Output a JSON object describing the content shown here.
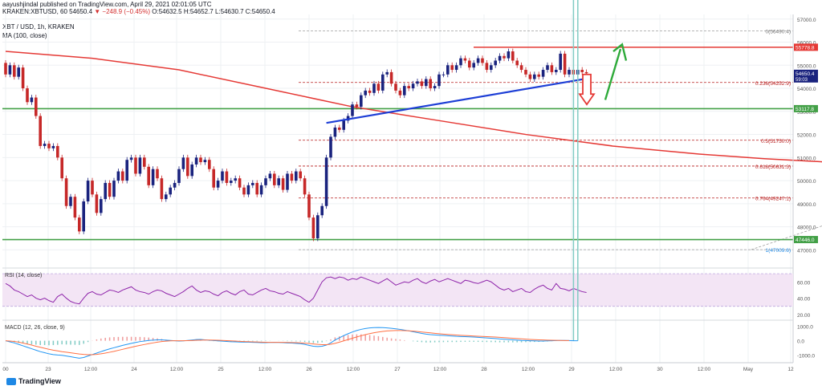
{
  "header": {
    "author_line": "aayushjindal published on TradingView.com, April 29, 2021 02:01:05 UTC",
    "ticker_line_prefix": "KRAKEN:XBTUSD, 60  54650.4 ",
    "ticker_change": "▼ −248.9 (−0.45%)",
    "ticker_ohlc": " O:54632.5 H:54652.7 L:54630.7 C:54650.4",
    "symbol_title": "XBT / USD, 1h, KRAKEN",
    "ma_label": "MA (100, close)"
  },
  "colors": {
    "up": "#1a237e",
    "down": "#c62828",
    "ma": "#e53935",
    "trendline": "#1e3fd6",
    "support": "#43a047",
    "resistance": "#e53935",
    "fib": "#b71c1c",
    "rsi": "#8e24aa",
    "rsi_band": "#f3e5f5",
    "macd": "#2196f3",
    "signal": "#ff7043",
    "arrow_up": "#2eaa3a",
    "arrow_down": "#e53935"
  },
  "chart_data": {
    "type": "candlestick",
    "title": "XBT / USD, 1h, KRAKEN",
    "ylim": [
      46700,
      57200
    ],
    "y_ticks": [
      47000,
      48000,
      49000,
      50000,
      51000,
      52000,
      53000,
      54000,
      55000,
      56000,
      57000
    ],
    "y_tick_labels": [
      "47000.0",
      "48000.0",
      "49000.0",
      "50000.0",
      "51000.0",
      "52000.0",
      "53000.0",
      "54000.0",
      "55000.0",
      "56000.0",
      "57000.0"
    ],
    "x_ticks": [
      "00",
      "23",
      "12:00",
      "24",
      "12:00",
      "25",
      "12:00",
      "26",
      "12:00",
      "27",
      "12:00",
      "28",
      "12:00",
      "29",
      "12:00",
      "30",
      "12:00",
      "May",
      "12"
    ],
    "price_badges": [
      {
        "label": "55778.8",
        "value": 55778.8,
        "color": "#e53935"
      },
      {
        "label": "54650.4",
        "value": 54650.4,
        "color": "#1a237e",
        "sub": "59:03"
      },
      {
        "label": "53117.8",
        "value": 53117.8,
        "color": "#43a047"
      },
      {
        "label": "47446.0",
        "value": 47446.0,
        "color": "#43a047"
      }
    ],
    "horizontal_levels": [
      {
        "name": "resistance",
        "value": 55778.8
      },
      {
        "name": "support-upper",
        "value": 53117.8
      },
      {
        "name": "support-lower",
        "value": 47446.0
      }
    ],
    "fibonacci": [
      {
        "ratio": "0",
        "value": 56490.4,
        "label": "0(56490.4)"
      },
      {
        "ratio": "0.236",
        "value": 54252.9,
        "label": "0.236(54252.9)"
      },
      {
        "ratio": "0.5",
        "value": 51750.0,
        "label": "0.5(51750.0)"
      },
      {
        "ratio": "0.618",
        "value": 50631.3,
        "label": "0.618(50631.3)"
      },
      {
        "ratio": "0.764",
        "value": 49247.1,
        "label": "0.764(49247.1)"
      },
      {
        "ratio": "1",
        "value": 47009.6,
        "label": "1(47009.6)"
      }
    ],
    "candles": [
      [
        55100,
        54600
      ],
      [
        54600,
        55000
      ],
      [
        55000,
        54500
      ],
      [
        54500,
        54900
      ],
      [
        54900,
        54000
      ],
      [
        54000,
        53400
      ],
      [
        53400,
        53600
      ],
      [
        53600,
        52800
      ],
      [
        52800,
        51500
      ],
      [
        51500,
        51600
      ],
      [
        51600,
        51400
      ],
      [
        51400,
        51500
      ],
      [
        51500,
        51000
      ],
      [
        51000,
        50100
      ],
      [
        50100,
        48900
      ],
      [
        48900,
        49300
      ],
      [
        49300,
        48400
      ],
      [
        48400,
        47800
      ],
      [
        47800,
        49100
      ],
      [
        49100,
        50000
      ],
      [
        50000,
        49400
      ],
      [
        49400,
        48600
      ],
      [
        48600,
        49200
      ],
      [
        49200,
        49900
      ],
      [
        49900,
        49300
      ],
      [
        49300,
        50000
      ],
      [
        50000,
        50400
      ],
      [
        50400,
        50000
      ],
      [
        50000,
        50900
      ],
      [
        50900,
        51000
      ],
      [
        51000,
        50300
      ],
      [
        50300,
        51000
      ],
      [
        51000,
        50600
      ],
      [
        50600,
        49800
      ],
      [
        49800,
        50500
      ],
      [
        50500,
        50100
      ],
      [
        50100,
        49200
      ],
      [
        49200,
        49400
      ],
      [
        49400,
        49700
      ],
      [
        49700,
        49900
      ],
      [
        49900,
        50500
      ],
      [
        50500,
        51000
      ],
      [
        51000,
        50200
      ],
      [
        50200,
        50700
      ],
      [
        50700,
        51000
      ],
      [
        51000,
        50800
      ],
      [
        50800,
        50900
      ],
      [
        50900,
        50500
      ],
      [
        50500,
        49700
      ],
      [
        49700,
        50000
      ],
      [
        50000,
        50400
      ],
      [
        50400,
        49900
      ],
      [
        49900,
        50000
      ],
      [
        50000,
        50100
      ],
      [
        50100,
        49700
      ],
      [
        49700,
        49400
      ],
      [
        49400,
        49800
      ],
      [
        49800,
        49900
      ],
      [
        49900,
        49400
      ],
      [
        49400,
        49800
      ],
      [
        49800,
        50100
      ],
      [
        50100,
        50300
      ],
      [
        50300,
        49800
      ],
      [
        49800,
        50100
      ],
      [
        50100,
        49600
      ],
      [
        49600,
        50300
      ],
      [
        50300,
        50000
      ],
      [
        50000,
        50400
      ],
      [
        50400,
        50100
      ],
      [
        50100,
        49400
      ],
      [
        49400,
        48400
      ],
      [
        48400,
        47500
      ],
      [
        47500,
        48500
      ],
      [
        48500,
        48900
      ],
      [
        48900,
        51000
      ],
      [
        51000,
        51900
      ],
      [
        51900,
        52300
      ],
      [
        52300,
        52200
      ],
      [
        52200,
        52600
      ],
      [
        52600,
        52800
      ],
      [
        52800,
        53300
      ],
      [
        53300,
        53200
      ],
      [
        53200,
        53700
      ],
      [
        53700,
        53900
      ],
      [
        53900,
        53800
      ],
      [
        53800,
        54200
      ],
      [
        54200,
        53900
      ],
      [
        53900,
        54600
      ],
      [
        54600,
        54700
      ],
      [
        54700,
        54200
      ],
      [
        54200,
        53900
      ],
      [
        53900,
        53700
      ],
      [
        53700,
        54100
      ],
      [
        54100,
        54000
      ],
      [
        54000,
        54200
      ],
      [
        54200,
        54300
      ],
      [
        54300,
        54100
      ],
      [
        54100,
        54400
      ],
      [
        54400,
        54000
      ],
      [
        54000,
        54100
      ],
      [
        54100,
        54600
      ],
      [
        54600,
        54600
      ],
      [
        54600,
        55000
      ],
      [
        55000,
        54800
      ],
      [
        54800,
        55000
      ],
      [
        55000,
        55300
      ],
      [
        55300,
        55200
      ],
      [
        55200,
        54900
      ],
      [
        54900,
        55100
      ],
      [
        55100,
        55300
      ],
      [
        55300,
        55100
      ],
      [
        55100,
        54800
      ],
      [
        54800,
        55000
      ],
      [
        55000,
        55200
      ],
      [
        55200,
        55400
      ],
      [
        55400,
        55300
      ],
      [
        55300,
        55600
      ],
      [
        55600,
        55200
      ],
      [
        55200,
        55000
      ],
      [
        55000,
        54800
      ],
      [
        54800,
        54600
      ],
      [
        54600,
        54400
      ],
      [
        54400,
        54600
      ],
      [
        54600,
        54500
      ],
      [
        54500,
        54800
      ],
      [
        54800,
        55000
      ],
      [
        55000,
        54700
      ],
      [
        54700,
        54800
      ],
      [
        54800,
        55500
      ],
      [
        55500,
        54600
      ],
      [
        54600,
        54800
      ],
      [
        54800,
        54600
      ],
      [
        54600,
        54800
      ],
      [
        54800,
        54700
      ],
      [
        54700,
        54650
      ]
    ],
    "ma100": [
      [
        0,
        55600
      ],
      [
        20,
        55300
      ],
      [
        40,
        54800
      ],
      [
        60,
        54000
      ],
      [
        80,
        53200
      ],
      [
        100,
        52600
      ],
      [
        120,
        52000
      ],
      [
        140,
        51500
      ],
      [
        160,
        51150
      ],
      [
        175,
        50950
      ],
      [
        190,
        50800
      ],
      [
        210,
        50750
      ],
      [
        230,
        50850
      ],
      [
        250,
        51200
      ],
      [
        270,
        51700
      ],
      [
        290,
        52150
      ],
      [
        305,
        52500
      ],
      [
        320,
        52900
      ],
      [
        323,
        53117
      ]
    ],
    "trendline": [
      [
        180,
        52500
      ],
      [
        335,
        54450
      ]
    ],
    "fib_anchor": [
      [
        172,
        47009.6
      ],
      [
        323,
        56490.4
      ]
    ],
    "rsi": {
      "label": "RSI (14, close)",
      "ticks": [
        "60.00",
        "40.00",
        "20.00"
      ],
      "values": [
        58,
        55,
        50,
        48,
        45,
        42,
        44,
        40,
        38,
        40,
        37,
        35,
        42,
        45,
        40,
        36,
        34,
        33,
        40,
        46,
        48,
        45,
        44,
        47,
        50,
        49,
        47,
        50,
        52,
        54,
        50,
        48,
        47,
        45,
        48,
        50,
        49,
        46,
        44,
        42,
        45,
        48,
        52,
        55,
        50,
        47,
        49,
        48,
        45,
        43,
        47,
        49,
        46,
        44,
        48,
        50,
        45,
        44,
        47,
        50,
        52,
        49,
        48,
        46,
        45,
        48,
        46,
        44,
        42,
        38,
        35,
        40,
        50,
        60,
        65,
        66,
        64,
        66,
        65,
        62,
        64,
        63,
        66,
        64,
        62,
        60,
        58,
        61,
        64,
        60,
        56,
        58,
        60,
        59,
        62,
        64,
        60,
        58,
        61,
        63,
        60,
        62,
        64,
        62,
        60,
        58,
        62,
        61,
        59,
        58,
        60,
        62,
        60,
        56,
        52,
        50,
        52,
        48,
        50,
        52,
        48,
        47,
        51,
        54,
        56,
        52,
        50,
        58,
        52,
        51,
        49,
        52,
        50,
        48,
        47
      ]
    },
    "macd": {
      "label": "MACD (12, 26, close, 9)",
      "ticks": [
        "1000.0",
        "0.0",
        "-1000.0"
      ],
      "macd": [
        0,
        -80,
        -150,
        -250,
        -350,
        -450,
        -550,
        -650,
        -750,
        -820,
        -900,
        -950,
        -980,
        -1000,
        -1050,
        -1100,
        -1150,
        -1200,
        -1150,
        -1050,
        -950,
        -850,
        -750,
        -650,
        -560,
        -480,
        -400,
        -320,
        -250,
        -180,
        -120,
        -60,
        -20,
        20,
        40,
        60,
        60,
        40,
        20,
        0,
        -20,
        -10,
        20,
        50,
        80,
        90,
        60,
        30,
        10,
        -10,
        -30,
        -50,
        -70,
        -80,
        -90,
        -100,
        -100,
        -110,
        -120,
        -130,
        -130,
        -120,
        -110,
        -120,
        -130,
        -150,
        -160,
        -180,
        -200,
        -250,
        -320,
        -380,
        -400,
        -380,
        -300,
        -150,
        50,
        200,
        350,
        480,
        600,
        700,
        780,
        840,
        880,
        900,
        910,
        900,
        880,
        850,
        820,
        780,
        730,
        680,
        620,
        560,
        500,
        450,
        420,
        400,
        380,
        360,
        340,
        320,
        300,
        290,
        280,
        270,
        250,
        230,
        210,
        190,
        170,
        150,
        120,
        100,
        80,
        60,
        40,
        20,
        10,
        0,
        -10,
        -20,
        -20,
        -10,
        0,
        10,
        20,
        20,
        10,
        0,
        0
      ],
      "signal": [
        0,
        -20,
        -50,
        -100,
        -160,
        -230,
        -300,
        -380,
        -450,
        -520,
        -590,
        -650,
        -700,
        -750,
        -790,
        -830,
        -870,
        -910,
        -940,
        -960,
        -960,
        -940,
        -900,
        -850,
        -790,
        -730,
        -660,
        -590,
        -520,
        -450,
        -380,
        -320,
        -260,
        -200,
        -150,
        -100,
        -60,
        -30,
        -10,
        0,
        0,
        0,
        5,
        15,
        30,
        40,
        45,
        45,
        40,
        30,
        20,
        5,
        -10,
        -25,
        -40,
        -55,
        -65,
        -75,
        -85,
        -95,
        -105,
        -110,
        -110,
        -112,
        -115,
        -120,
        -125,
        -135,
        -145,
        -165,
        -190,
        -220,
        -250,
        -270,
        -270,
        -240,
        -180,
        -100,
        -10,
        80,
        170,
        260,
        340,
        420,
        490,
        550,
        600,
        640,
        670,
        690,
        700,
        700,
        695,
        680,
        660,
        630,
        600,
        570,
        540,
        510,
        480,
        455,
        430,
        410,
        390,
        370,
        355,
        340,
        325,
        310,
        295,
        280,
        265,
        250,
        230,
        210,
        190,
        170,
        150,
        130,
        110,
        90,
        75,
        60,
        50,
        40,
        30,
        25,
        20,
        15,
        12
      ]
    }
  },
  "footer": {
    "brand": "TradingView"
  }
}
